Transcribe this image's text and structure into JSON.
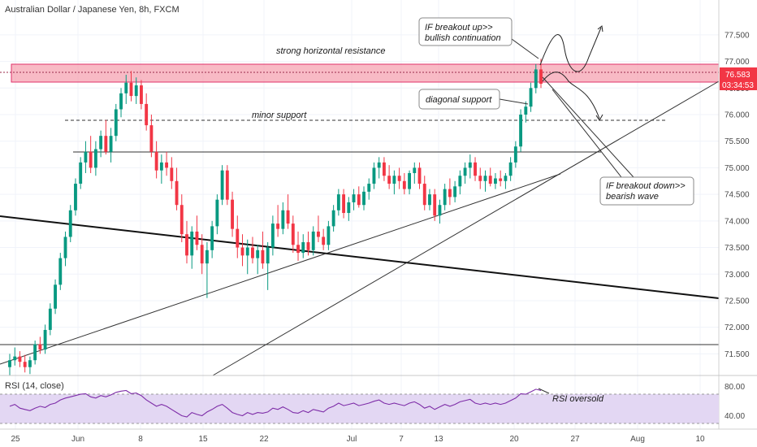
{
  "header": {
    "title": "Australian Dollar / Japanese Yen, 8h, FXCM"
  },
  "chart_data": {
    "type": "candlestick",
    "ylim": [
      71.2,
      77.85
    ],
    "y_ticks": [
      "77.500",
      "77.000",
      "76.500",
      "76.000",
      "75.500",
      "75.000",
      "74.500",
      "74.000",
      "73.500",
      "73.000",
      "72.500",
      "72.000",
      "71.500"
    ],
    "x_ticks": [
      "25",
      "Jun",
      "8",
      "15",
      "22",
      "Jul",
      "7",
      "13",
      "20",
      "27",
      "Aug",
      "10"
    ],
    "current_price": "76.583",
    "countdown": "03:34:53",
    "up_color": "#089981",
    "down_color": "#f23645",
    "candles": [
      [
        71.25,
        71.5,
        71.1,
        71.38
      ],
      [
        71.38,
        71.62,
        71.28,
        71.45
      ],
      [
        71.45,
        71.55,
        71.25,
        71.35
      ],
      [
        71.35,
        71.48,
        71.15,
        71.25
      ],
      [
        71.25,
        71.45,
        71.12,
        71.38
      ],
      [
        71.38,
        71.75,
        71.3,
        71.68
      ],
      [
        71.68,
        71.82,
        71.5,
        71.58
      ],
      [
        71.58,
        72.05,
        71.5,
        71.95
      ],
      [
        71.95,
        72.45,
        71.85,
        72.35
      ],
      [
        72.35,
        72.9,
        72.25,
        72.8
      ],
      [
        72.8,
        73.4,
        72.7,
        73.3
      ],
      [
        73.3,
        73.8,
        73.15,
        73.7
      ],
      [
        73.7,
        74.3,
        73.6,
        74.2
      ],
      [
        74.2,
        74.8,
        74.1,
        74.7
      ],
      [
        74.7,
        75.2,
        74.6,
        75.1
      ],
      [
        75.1,
        75.5,
        74.9,
        75.3
      ],
      [
        75.3,
        75.6,
        74.9,
        75.0
      ],
      [
        75.0,
        75.5,
        74.85,
        75.35
      ],
      [
        75.35,
        75.7,
        75.2,
        75.6
      ],
      [
        75.6,
        75.9,
        75.25,
        75.3
      ],
      [
        75.3,
        75.75,
        75.1,
        75.6
      ],
      [
        75.6,
        76.2,
        75.5,
        76.1
      ],
      [
        76.1,
        76.5,
        75.95,
        76.4
      ],
      [
        76.4,
        76.75,
        76.2,
        76.6
      ],
      [
        76.6,
        76.82,
        76.25,
        76.35
      ],
      [
        76.35,
        76.7,
        76.2,
        76.55
      ],
      [
        76.55,
        76.65,
        76.1,
        76.2
      ],
      [
        76.2,
        76.4,
        75.7,
        75.8
      ],
      [
        75.8,
        76.0,
        75.2,
        75.3
      ],
      [
        75.3,
        75.5,
        74.8,
        74.95
      ],
      [
        74.95,
        75.25,
        74.7,
        75.1
      ],
      [
        75.1,
        75.3,
        74.85,
        75.0
      ],
      [
        75.0,
        75.2,
        74.6,
        74.75
      ],
      [
        74.75,
        75.0,
        74.2,
        74.3
      ],
      [
        74.3,
        74.5,
        73.6,
        73.75
      ],
      [
        73.75,
        74.0,
        73.2,
        73.35
      ],
      [
        73.35,
        73.9,
        73.1,
        73.8
      ],
      [
        73.8,
        74.1,
        73.45,
        73.55
      ],
      [
        73.55,
        73.75,
        73.0,
        73.2
      ],
      [
        73.2,
        73.6,
        72.55,
        73.45
      ],
      [
        73.45,
        74.0,
        73.3,
        73.9
      ],
      [
        73.9,
        74.5,
        73.75,
        74.4
      ],
      [
        74.4,
        75.05,
        74.3,
        74.95
      ],
      [
        74.95,
        75.05,
        74.3,
        74.4
      ],
      [
        74.4,
        74.55,
        73.7,
        73.85
      ],
      [
        73.85,
        74.1,
        73.3,
        73.5
      ],
      [
        73.5,
        73.75,
        73.15,
        73.35
      ],
      [
        73.35,
        73.65,
        73.0,
        73.5
      ],
      [
        73.5,
        73.7,
        73.2,
        73.3
      ],
      [
        73.3,
        73.55,
        73.0,
        73.45
      ],
      [
        73.45,
        73.8,
        73.1,
        73.2
      ],
      [
        73.2,
        73.6,
        72.7,
        73.5
      ],
      [
        73.5,
        74.1,
        73.35,
        73.95
      ],
      [
        73.95,
        74.3,
        73.7,
        73.85
      ],
      [
        73.85,
        74.35,
        73.75,
        74.2
      ],
      [
        74.2,
        74.5,
        73.85,
        73.95
      ],
      [
        73.95,
        74.1,
        73.4,
        73.55
      ],
      [
        73.55,
        73.8,
        73.25,
        73.4
      ],
      [
        73.4,
        73.75,
        73.3,
        73.6
      ],
      [
        73.6,
        73.8,
        73.35,
        73.45
      ],
      [
        73.45,
        73.9,
        73.35,
        73.8
      ],
      [
        73.8,
        74.1,
        73.6,
        73.7
      ],
      [
        73.7,
        73.85,
        73.45,
        73.55
      ],
      [
        73.55,
        74.0,
        73.45,
        73.9
      ],
      [
        73.9,
        74.3,
        73.8,
        74.2
      ],
      [
        74.2,
        74.6,
        74.1,
        74.5
      ],
      [
        74.5,
        74.6,
        74.05,
        74.15
      ],
      [
        74.15,
        74.45,
        74.0,
        74.35
      ],
      [
        74.35,
        74.6,
        74.2,
        74.5
      ],
      [
        74.5,
        74.65,
        74.25,
        74.3
      ],
      [
        74.3,
        74.65,
        74.2,
        74.55
      ],
      [
        74.55,
        74.8,
        74.4,
        74.7
      ],
      [
        74.7,
        75.1,
        74.6,
        75.0
      ],
      [
        75.0,
        75.2,
        74.8,
        75.1
      ],
      [
        75.1,
        75.2,
        74.75,
        74.85
      ],
      [
        74.85,
        75.05,
        74.6,
        74.7
      ],
      [
        74.7,
        74.95,
        74.5,
        74.85
      ],
      [
        74.85,
        75.0,
        74.6,
        74.75
      ],
      [
        74.75,
        74.9,
        74.5,
        74.6
      ],
      [
        74.6,
        74.95,
        74.5,
        74.9
      ],
      [
        74.9,
        75.1,
        74.7,
        75.0
      ],
      [
        75.0,
        75.1,
        74.6,
        74.7
      ],
      [
        74.7,
        74.85,
        74.2,
        74.3
      ],
      [
        74.3,
        74.6,
        74.2,
        74.5
      ],
      [
        74.5,
        74.6,
        74.0,
        74.1
      ],
      [
        74.1,
        74.4,
        73.95,
        74.3
      ],
      [
        74.3,
        74.7,
        74.2,
        74.6
      ],
      [
        74.6,
        74.8,
        74.3,
        74.45
      ],
      [
        74.45,
        74.75,
        74.35,
        74.65
      ],
      [
        74.65,
        74.95,
        74.5,
        74.85
      ],
      [
        74.85,
        75.1,
        74.7,
        75.0
      ],
      [
        75.0,
        75.25,
        74.8,
        75.1
      ],
      [
        75.1,
        75.2,
        74.75,
        74.85
      ],
      [
        74.85,
        75.0,
        74.6,
        74.75
      ],
      [
        74.75,
        74.95,
        74.55,
        74.85
      ],
      [
        74.85,
        75.0,
        74.65,
        74.7
      ],
      [
        74.7,
        74.9,
        74.6,
        74.8
      ],
      [
        74.8,
        74.95,
        74.65,
        74.75
      ],
      [
        74.75,
        74.9,
        74.6,
        74.85
      ],
      [
        74.85,
        75.2,
        74.75,
        75.1
      ],
      [
        75.1,
        75.5,
        75.0,
        75.4
      ],
      [
        75.4,
        76.1,
        75.3,
        76.0
      ],
      [
        76.0,
        76.25,
        75.85,
        76.15
      ],
      [
        76.15,
        76.6,
        76.05,
        76.5
      ],
      [
        76.5,
        76.95,
        76.4,
        76.85
      ],
      [
        76.85,
        77.05,
        76.5,
        76.58
      ]
    ],
    "rsi_label": "RSI (14, close)",
    "rsi_ticks": [
      "80.00",
      "40.00"
    ],
    "rsi_values": [
      55,
      58,
      52,
      50,
      48,
      52,
      55,
      53,
      58,
      60,
      65,
      68,
      70,
      72,
      74,
      75,
      70,
      68,
      72,
      70,
      73,
      77,
      79,
      80,
      75,
      76,
      72,
      65,
      60,
      55,
      58,
      55,
      50,
      45,
      40,
      38,
      45,
      42,
      40,
      46,
      50,
      55,
      58,
      52,
      45,
      42,
      40,
      45,
      42,
      45,
      44,
      46,
      52,
      50,
      54,
      50,
      45,
      44,
      48,
      45,
      50,
      48,
      46,
      52,
      55,
      60,
      56,
      58,
      60,
      56,
      58,
      60,
      63,
      65,
      60,
      58,
      60,
      58,
      56,
      60,
      62,
      58,
      52,
      55,
      50,
      54,
      58,
      55,
      58,
      62,
      64,
      66,
      60,
      58,
      60,
      58,
      60,
      58,
      60,
      64,
      68,
      75,
      74,
      78,
      82,
      80
    ],
    "annotations": {
      "resistance": "strong horizontal resistance",
      "minor_support": "minor support",
      "breakout_up_line1": "IF breakout up>>",
      "breakout_up_line2": "bullish continuation",
      "diagonal_support": "diagonal support",
      "breakout_down_line1": "IF breakout down>>",
      "breakout_down_line2": "bearish wave",
      "rsi_note": "RSI oversold"
    }
  }
}
